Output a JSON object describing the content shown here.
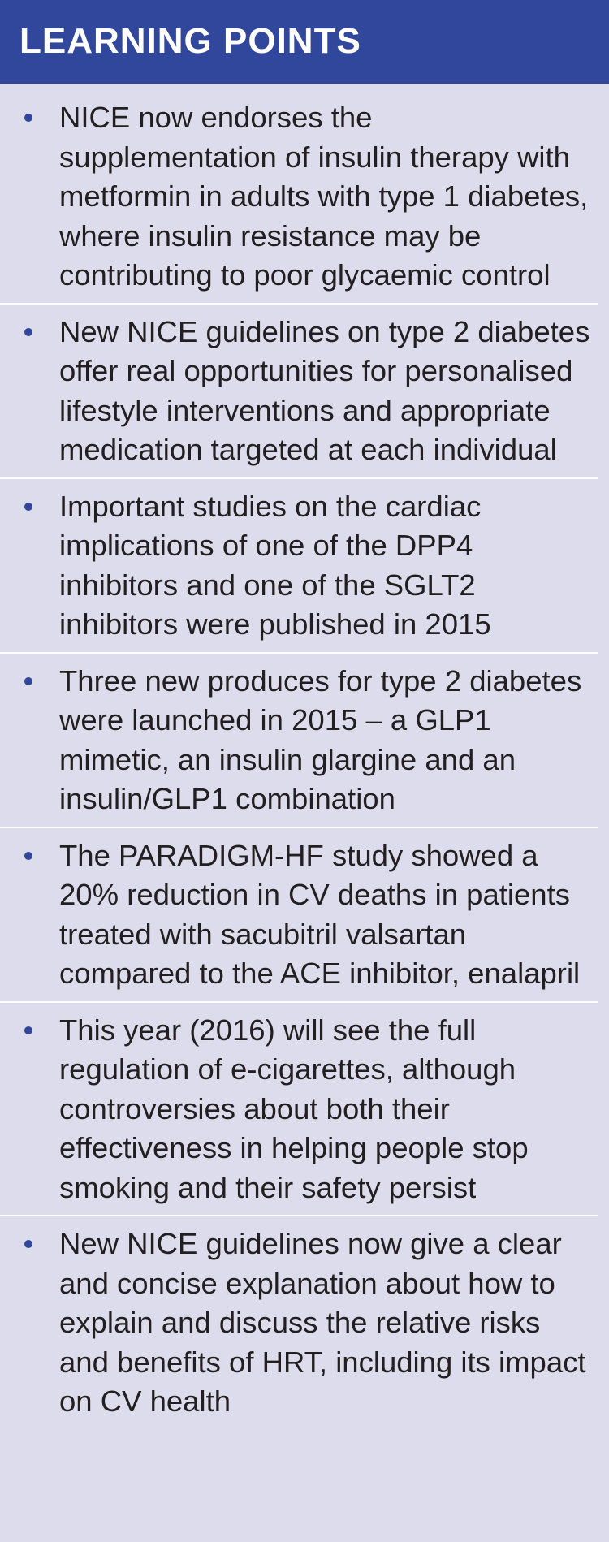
{
  "header": {
    "title": "LEARNING POINTS"
  },
  "colors": {
    "header_bg": "#31479b",
    "box_bg": "#dcdcec",
    "bullet": "#31479b",
    "text": "#231f20"
  },
  "points": [
    {
      "text": "NICE now endorses the supplementation of insulin therapy with metformin in adults with type 1 diabetes, where insulin resistance may be contributing to poor glycaemic control"
    },
    {
      "text": "New NICE guidelines on type 2 diabetes offer real opportunities for personalised lifestyle interventions and appropriate medication targeted at each individual"
    },
    {
      "text": "Important studies on the cardiac implications of one of the DPP4 inhibitors and one of the SGLT2 inhibitors were published in 2015"
    },
    {
      "text": "Three new produces for type 2 diabetes were launched in 2015 – a GLP1 mimetic, an insulin glargine and an insulin/GLP1 combination"
    },
    {
      "text": "The PARADIGM-HF study showed a 20% reduction in CV deaths in patients treated with sacubitril valsartan compared to the ACE inhibitor, enalapril"
    },
    {
      "text": "This year (2016) will see the full regulation of e-cigarettes, although controversies about both their effectiveness in helping people stop smoking and their safety persist"
    },
    {
      "text": "New NICE guidelines now give a clear and concise explanation about how to explain and discuss the relative risks and benefits of HRT, including its impact on CV health"
    }
  ]
}
